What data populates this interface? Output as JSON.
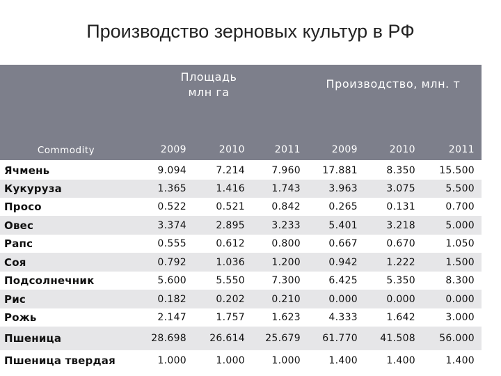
{
  "title": "Производство зерновых культур в РФ",
  "header": {
    "area_title_line1": "Площадь",
    "area_title_line2": "млн га",
    "production_title": "Производство, млн. т",
    "commodity_label": "Commodity",
    "years": [
      "2009",
      "2010",
      "2011",
      "2009",
      "2010",
      "2011"
    ]
  },
  "rows": [
    {
      "name": "Ячмень",
      "values": [
        "9.094",
        "7.214",
        "7.960",
        "17.881",
        "8.350",
        "15.500"
      ]
    },
    {
      "name": "Кукуруза",
      "values": [
        "1.365",
        "1.416",
        "1.743",
        "3.963",
        "3.075",
        "5.500"
      ]
    },
    {
      "name": "Просо",
      "values": [
        "0.522",
        "0.521",
        "0.842",
        "0.265",
        "0.131",
        "0.700"
      ]
    },
    {
      "name": "Овес",
      "values": [
        "3.374",
        "2.895",
        "3.233",
        "5.401",
        "3.218",
        "5.000"
      ]
    },
    {
      "name": "Рапс",
      "values": [
        "0.555",
        "0.612",
        "0.800",
        "0.667",
        "0.670",
        "1.050"
      ]
    },
    {
      "name": "Соя",
      "values": [
        "0.792",
        "1.036",
        "1.200",
        "0.942",
        "1.222",
        "1.500"
      ]
    },
    {
      "name": "Подсолнечник",
      "values": [
        "5.600",
        "5.550",
        "7.300",
        "6.425",
        "5.350",
        "8.300"
      ]
    },
    {
      "name": "Рис",
      "values": [
        "0.182",
        "0.202",
        "0.210",
        "0.000",
        "0.000",
        "0.000"
      ]
    },
    {
      "name": "Рожь",
      "values": [
        "2.147",
        "1.757",
        "1.623",
        "4.333",
        "1.642",
        "3.000"
      ]
    },
    {
      "name": "Пшеница",
      "values": [
        "28.698",
        "26.614",
        "25.679",
        "61.770",
        "41.508",
        "56.000"
      ]
    },
    {
      "name": "Пшеница твердая",
      "values": [
        "1.000",
        "1.000",
        "1.000",
        "1.400",
        "1.400",
        "1.400"
      ]
    }
  ]
}
